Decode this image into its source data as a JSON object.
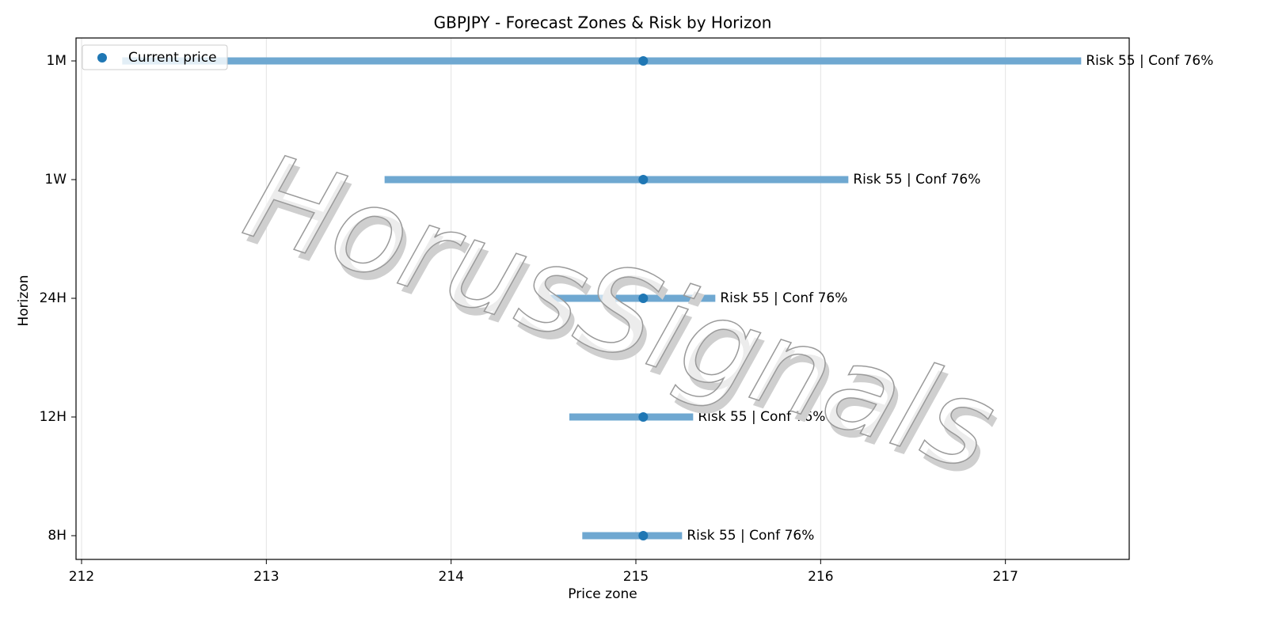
{
  "chart_data": {
    "type": "range",
    "title": "GBPJPY - Forecast Zones & Risk by Horizon",
    "xlabel": "Price zone",
    "ylabel": "Horizon",
    "categories": [
      "8H",
      "12H",
      "24H",
      "1W",
      "1M"
    ],
    "low": [
      214.71,
      214.64,
      214.49,
      213.64,
      212.22
    ],
    "high": [
      215.25,
      215.31,
      215.43,
      216.15,
      217.41
    ],
    "bar_color": "#6fa8d1",
    "series": [
      {
        "name": "Current price",
        "color": "#1f77b4",
        "values": [
          215.04,
          215.04,
          215.04,
          215.04,
          215.04
        ]
      }
    ],
    "annotations": [
      "Risk 55 | Conf 76%",
      "Risk 55 | Conf 76%",
      "Risk 55 | Conf 76%",
      "Risk 55 | Conf 76%",
      "Risk 55 | Conf 76%"
    ],
    "xlim": [
      211.97,
      217.67
    ],
    "xticks": [
      212,
      213,
      214,
      215,
      216,
      217
    ],
    "grid": true,
    "legend": "upper left",
    "watermark": "HorusSignals"
  }
}
